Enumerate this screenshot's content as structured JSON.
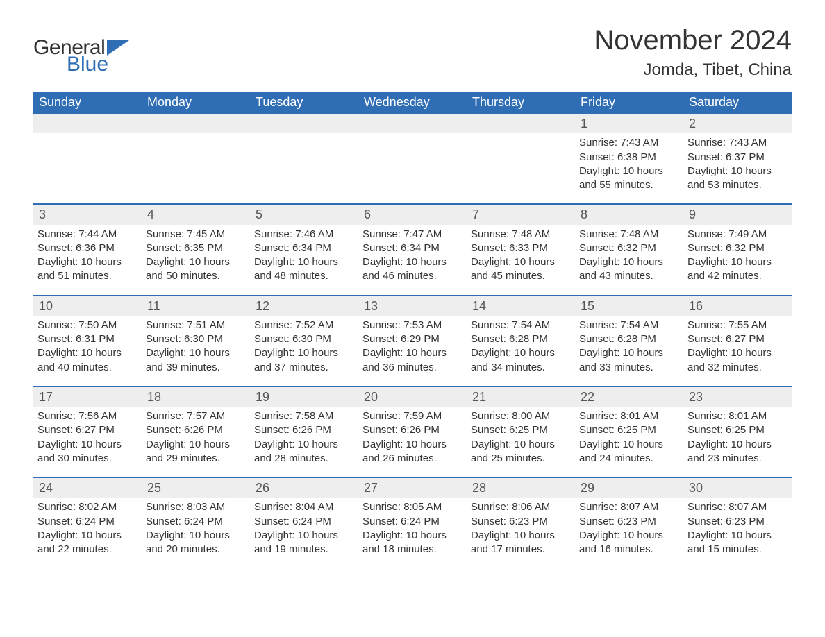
{
  "logo": {
    "word1": "General",
    "word2": "Blue"
  },
  "title": {
    "month_year": "November 2024",
    "location": "Jomda, Tibet, China"
  },
  "colors": {
    "header_bg": "#2f6eb5",
    "header_text": "#ffffff",
    "row_band_bg": "#eeeeee",
    "row_top_border": "#2f6eb5",
    "body_text": "#333333",
    "logo_blue": "#2f6eb5"
  },
  "days_of_week": [
    "Sunday",
    "Monday",
    "Tuesday",
    "Wednesday",
    "Thursday",
    "Friday",
    "Saturday"
  ],
  "weeks": [
    [
      null,
      null,
      null,
      null,
      null,
      {
        "n": "1",
        "sunrise": "Sunrise: 7:43 AM",
        "sunset": "Sunset: 6:38 PM",
        "daylight": "Daylight: 10 hours and 55 minutes."
      },
      {
        "n": "2",
        "sunrise": "Sunrise: 7:43 AM",
        "sunset": "Sunset: 6:37 PM",
        "daylight": "Daylight: 10 hours and 53 minutes."
      }
    ],
    [
      {
        "n": "3",
        "sunrise": "Sunrise: 7:44 AM",
        "sunset": "Sunset: 6:36 PM",
        "daylight": "Daylight: 10 hours and 51 minutes."
      },
      {
        "n": "4",
        "sunrise": "Sunrise: 7:45 AM",
        "sunset": "Sunset: 6:35 PM",
        "daylight": "Daylight: 10 hours and 50 minutes."
      },
      {
        "n": "5",
        "sunrise": "Sunrise: 7:46 AM",
        "sunset": "Sunset: 6:34 PM",
        "daylight": "Daylight: 10 hours and 48 minutes."
      },
      {
        "n": "6",
        "sunrise": "Sunrise: 7:47 AM",
        "sunset": "Sunset: 6:34 PM",
        "daylight": "Daylight: 10 hours and 46 minutes."
      },
      {
        "n": "7",
        "sunrise": "Sunrise: 7:48 AM",
        "sunset": "Sunset: 6:33 PM",
        "daylight": "Daylight: 10 hours and 45 minutes."
      },
      {
        "n": "8",
        "sunrise": "Sunrise: 7:48 AM",
        "sunset": "Sunset: 6:32 PM",
        "daylight": "Daylight: 10 hours and 43 minutes."
      },
      {
        "n": "9",
        "sunrise": "Sunrise: 7:49 AM",
        "sunset": "Sunset: 6:32 PM",
        "daylight": "Daylight: 10 hours and 42 minutes."
      }
    ],
    [
      {
        "n": "10",
        "sunrise": "Sunrise: 7:50 AM",
        "sunset": "Sunset: 6:31 PM",
        "daylight": "Daylight: 10 hours and 40 minutes."
      },
      {
        "n": "11",
        "sunrise": "Sunrise: 7:51 AM",
        "sunset": "Sunset: 6:30 PM",
        "daylight": "Daylight: 10 hours and 39 minutes."
      },
      {
        "n": "12",
        "sunrise": "Sunrise: 7:52 AM",
        "sunset": "Sunset: 6:30 PM",
        "daylight": "Daylight: 10 hours and 37 minutes."
      },
      {
        "n": "13",
        "sunrise": "Sunrise: 7:53 AM",
        "sunset": "Sunset: 6:29 PM",
        "daylight": "Daylight: 10 hours and 36 minutes."
      },
      {
        "n": "14",
        "sunrise": "Sunrise: 7:54 AM",
        "sunset": "Sunset: 6:28 PM",
        "daylight": "Daylight: 10 hours and 34 minutes."
      },
      {
        "n": "15",
        "sunrise": "Sunrise: 7:54 AM",
        "sunset": "Sunset: 6:28 PM",
        "daylight": "Daylight: 10 hours and 33 minutes."
      },
      {
        "n": "16",
        "sunrise": "Sunrise: 7:55 AM",
        "sunset": "Sunset: 6:27 PM",
        "daylight": "Daylight: 10 hours and 32 minutes."
      }
    ],
    [
      {
        "n": "17",
        "sunrise": "Sunrise: 7:56 AM",
        "sunset": "Sunset: 6:27 PM",
        "daylight": "Daylight: 10 hours and 30 minutes."
      },
      {
        "n": "18",
        "sunrise": "Sunrise: 7:57 AM",
        "sunset": "Sunset: 6:26 PM",
        "daylight": "Daylight: 10 hours and 29 minutes."
      },
      {
        "n": "19",
        "sunrise": "Sunrise: 7:58 AM",
        "sunset": "Sunset: 6:26 PM",
        "daylight": "Daylight: 10 hours and 28 minutes."
      },
      {
        "n": "20",
        "sunrise": "Sunrise: 7:59 AM",
        "sunset": "Sunset: 6:26 PM",
        "daylight": "Daylight: 10 hours and 26 minutes."
      },
      {
        "n": "21",
        "sunrise": "Sunrise: 8:00 AM",
        "sunset": "Sunset: 6:25 PM",
        "daylight": "Daylight: 10 hours and 25 minutes."
      },
      {
        "n": "22",
        "sunrise": "Sunrise: 8:01 AM",
        "sunset": "Sunset: 6:25 PM",
        "daylight": "Daylight: 10 hours and 24 minutes."
      },
      {
        "n": "23",
        "sunrise": "Sunrise: 8:01 AM",
        "sunset": "Sunset: 6:25 PM",
        "daylight": "Daylight: 10 hours and 23 minutes."
      }
    ],
    [
      {
        "n": "24",
        "sunrise": "Sunrise: 8:02 AM",
        "sunset": "Sunset: 6:24 PM",
        "daylight": "Daylight: 10 hours and 22 minutes."
      },
      {
        "n": "25",
        "sunrise": "Sunrise: 8:03 AM",
        "sunset": "Sunset: 6:24 PM",
        "daylight": "Daylight: 10 hours and 20 minutes."
      },
      {
        "n": "26",
        "sunrise": "Sunrise: 8:04 AM",
        "sunset": "Sunset: 6:24 PM",
        "daylight": "Daylight: 10 hours and 19 minutes."
      },
      {
        "n": "27",
        "sunrise": "Sunrise: 8:05 AM",
        "sunset": "Sunset: 6:24 PM",
        "daylight": "Daylight: 10 hours and 18 minutes."
      },
      {
        "n": "28",
        "sunrise": "Sunrise: 8:06 AM",
        "sunset": "Sunset: 6:23 PM",
        "daylight": "Daylight: 10 hours and 17 minutes."
      },
      {
        "n": "29",
        "sunrise": "Sunrise: 8:07 AM",
        "sunset": "Sunset: 6:23 PM",
        "daylight": "Daylight: 10 hours and 16 minutes."
      },
      {
        "n": "30",
        "sunrise": "Sunrise: 8:07 AM",
        "sunset": "Sunset: 6:23 PM",
        "daylight": "Daylight: 10 hours and 15 minutes."
      }
    ]
  ]
}
